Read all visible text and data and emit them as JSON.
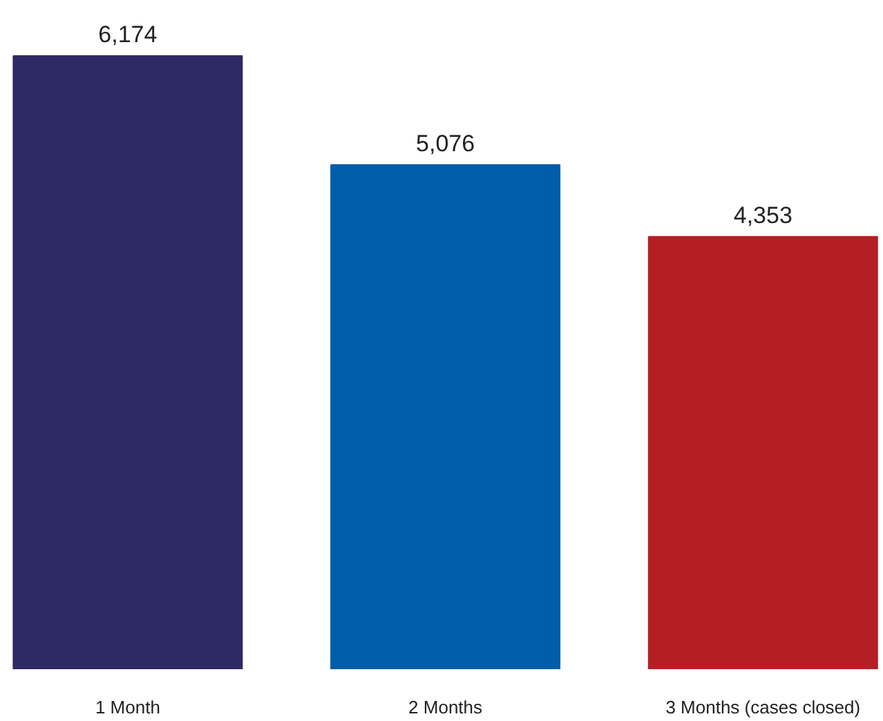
{
  "chart_data": {
    "type": "bar",
    "categories": [
      "1 Month",
      "2 Months",
      "3 Months (cases closed)"
    ],
    "values": [
      6174,
      5076,
      4353
    ],
    "value_labels": [
      "6,174",
      "5,076",
      "4,353"
    ],
    "colors": [
      "#2e2a65",
      "#005ea8",
      "#b41f26"
    ],
    "grid": false
  }
}
